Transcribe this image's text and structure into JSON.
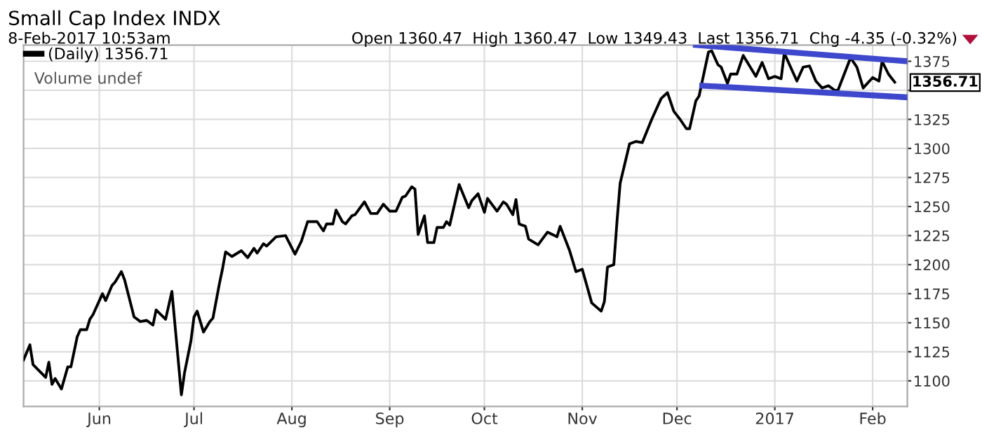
{
  "chart_data": {
    "type": "line",
    "title": "Small Cap Index INDX",
    "annotations": [
      "8-Feb-2017 10:53am",
      "Open 1360.47  High 1360.47  Low 1349.43  Last 1356.71  Chg -4.35 (-0.32%)",
      "Volume undef",
      {
        "text": "1356.71",
        "x": "2017-02-08",
        "y": 1356.71
      }
    ],
    "series": [
      {
        "name": "(Daily) 1356.71",
        "color": "#000000",
        "x": [
          "2016-05-08",
          "2016-05-10",
          "2016-05-11",
          "2016-05-15",
          "2016-05-16",
          "2016-05-17",
          "2016-05-18",
          "2016-05-20",
          "2016-05-22",
          "2016-05-23",
          "2016-05-25",
          "2016-05-26",
          "2016-05-28",
          "2016-05-29",
          "2016-05-30",
          "2016-06-02",
          "2016-06-03",
          "2016-06-05",
          "2016-06-06",
          "2016-06-08",
          "2016-06-09",
          "2016-06-12",
          "2016-06-14",
          "2016-06-16",
          "2016-06-18",
          "2016-06-19",
          "2016-06-22",
          "2016-06-24",
          "2016-06-27",
          "2016-06-28",
          "2016-06-30",
          "2016-07-01",
          "2016-07-02",
          "2016-07-04",
          "2016-07-06",
          "2016-07-07",
          "2016-07-09",
          "2016-07-10",
          "2016-07-11",
          "2016-07-13",
          "2016-07-16",
          "2016-07-18",
          "2016-07-20",
          "2016-07-21",
          "2016-07-23",
          "2016-07-24",
          "2016-07-27",
          "2016-07-30",
          "2016-08-02",
          "2016-08-04",
          "2016-08-06",
          "2016-08-09",
          "2016-08-11",
          "2016-08-12",
          "2016-08-14",
          "2016-08-15",
          "2016-08-17",
          "2016-08-18",
          "2016-08-20",
          "2016-08-21",
          "2016-08-24",
          "2016-08-26",
          "2016-08-28",
          "2016-08-30",
          "2016-09-01",
          "2016-09-03",
          "2016-09-05",
          "2016-09-06",
          "2016-09-08",
          "2016-09-09",
          "2016-09-10",
          "2016-09-12",
          "2016-09-13",
          "2016-09-15",
          "2016-09-16",
          "2016-09-18",
          "2016-09-19",
          "2016-09-20",
          "2016-09-23",
          "2016-09-26",
          "2016-09-27",
          "2016-09-29",
          "2016-10-01",
          "2016-10-02",
          "2016-10-05",
          "2016-10-07",
          "2016-10-08",
          "2016-10-10",
          "2016-10-11",
          "2016-10-12",
          "2016-10-14",
          "2016-10-15",
          "2016-10-18",
          "2016-10-21",
          "2016-10-24",
          "2016-10-25",
          "2016-10-28",
          "2016-10-30",
          "2016-11-01",
          "2016-11-04",
          "2016-11-07",
          "2016-11-08",
          "2016-11-09",
          "2016-11-11",
          "2016-11-12",
          "2016-11-13",
          "2016-11-16",
          "2016-11-18",
          "2016-11-20",
          "2016-11-23",
          "2016-11-26",
          "2016-11-28",
          "2016-11-30",
          "2016-12-02",
          "2016-12-04",
          "2016-12-05",
          "2016-12-07",
          "2016-12-08",
          "2016-12-11",
          "2016-12-12",
          "2016-12-14",
          "2016-12-15",
          "2016-12-17",
          "2016-12-18",
          "2016-12-20",
          "2016-12-22",
          "2016-12-26",
          "2016-12-28",
          "2016-12-30",
          "2017-01-01",
          "2017-01-03",
          "2017-01-04",
          "2017-01-06",
          "2017-01-08",
          "2017-01-10",
          "2017-01-12",
          "2017-01-14",
          "2017-01-16",
          "2017-01-18",
          "2017-01-20",
          "2017-01-21",
          "2017-01-25",
          "2017-01-27",
          "2017-01-29",
          "2017-02-01",
          "2017-02-03",
          "2017-02-04",
          "2017-02-06",
          "2017-02-08"
        ],
        "values": [
          1118,
          1131,
          1114,
          1103,
          1116,
          1097,
          1102,
          1093,
          1112,
          1112,
          1138,
          1144,
          1144,
          1153,
          1157,
          1175,
          1169,
          1182,
          1185,
          1194,
          1187,
          1155,
          1151,
          1152,
          1148,
          1161,
          1153,
          1177,
          1088,
          1107,
          1134,
          1155,
          1160,
          1142,
          1151,
          1154,
          1183,
          1196,
          1211,
          1207,
          1212,
          1206,
          1214,
          1210,
          1218,
          1216,
          1224,
          1225,
          1209,
          1220,
          1237,
          1237,
          1229,
          1235,
          1235,
          1247,
          1237,
          1235,
          1242,
          1243,
          1254,
          1244,
          1244,
          1252,
          1246,
          1246,
          1258,
          1259,
          1267,
          1265,
          1226,
          1242,
          1219,
          1219,
          1232,
          1232,
          1237,
          1234,
          1269,
          1249,
          1255,
          1261,
          1245,
          1257,
          1246,
          1254,
          1252,
          1243,
          1256,
          1235,
          1233,
          1222,
          1217,
          1228,
          1224,
          1233,
          1212,
          1194,
          1196,
          1167,
          1160,
          1168,
          1198,
          1200,
          1237,
          1270,
          1304,
          1306,
          1305,
          1325,
          1343,
          1348,
          1332,
          1325,
          1317,
          1317,
          1341,
          1345,
          1383,
          1384,
          1372,
          1370,
          1356,
          1364,
          1364,
          1380,
          1362,
          1374,
          1360,
          1362,
          1360,
          1382,
          1370,
          1358,
          1370,
          1371,
          1358,
          1352,
          1354,
          1350,
          1350,
          1378,
          1370,
          1352,
          1361,
          1358,
          1375,
          1364,
          1357
        ]
      },
      {
        "type": "line",
        "color": "#3f48cc",
        "x": [
          "2016-12-07",
          "2017-02-12"
        ],
        "values": [
          1389,
          1375
        ]
      },
      {
        "type": "line",
        "color": "#3f48cc",
        "x": [
          "2016-12-09",
          "2017-02-12"
        ],
        "values": [
          1354,
          1344
        ]
      }
    ],
    "xlim": [
      "2016-05-08",
      "2017-02-12"
    ],
    "xticks": [
      {
        "value": "2016-06-01",
        "label": "Jun"
      },
      {
        "value": "2016-07-01",
        "label": "Jul"
      },
      {
        "value": "2016-08-01",
        "label": "Aug"
      },
      {
        "value": "2016-09-01",
        "label": "Sep"
      },
      {
        "value": "2016-10-01",
        "label": "Oct"
      },
      {
        "value": "2016-11-01",
        "label": "Nov"
      },
      {
        "value": "2016-12-01",
        "label": "Dec"
      },
      {
        "value": "2017-01-01",
        "label": "2017"
      },
      {
        "value": "2017-02-01",
        "label": "Feb"
      }
    ],
    "ylim": [
      1078,
      1389
    ],
    "yticks": [
      1100,
      1125,
      1150,
      1175,
      1200,
      1225,
      1250,
      1275,
      1300,
      1325,
      {
        "value": 1350,
        "label": null
      },
      1375
    ],
    "grid": true,
    "legend": "top left",
    "marker": "none",
    "line_style": "solid"
  }
}
